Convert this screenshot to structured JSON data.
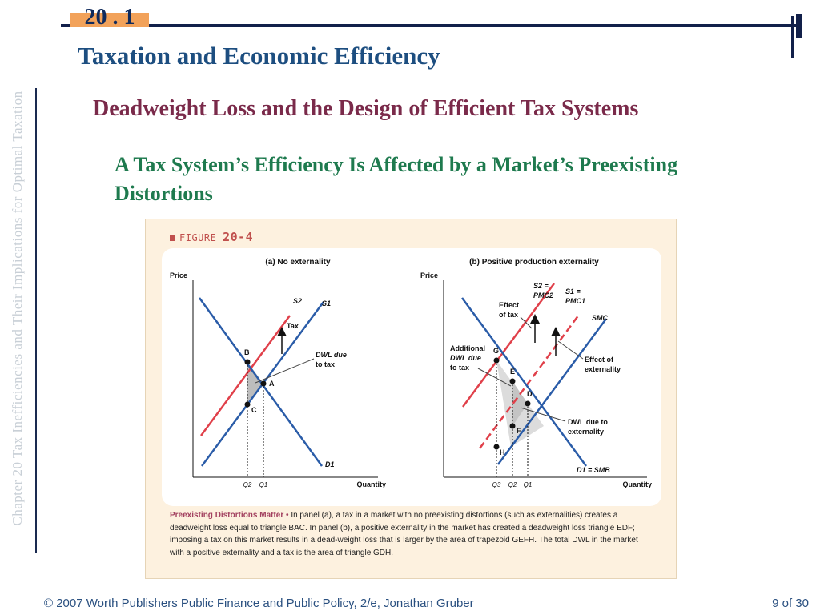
{
  "side_text": "Chapter 20  Tax Inefficiencies and Their Implications for Optimal Taxation",
  "section_number": "20 . 1",
  "title": "Taxation and Economic Efficiency",
  "subtitle": "Deadweight Loss and the Design of Efficient Tax Systems",
  "heading": "A Tax System’s Efficiency Is Affected by a Market’s Preexisting Distortions",
  "figure": {
    "label": "FIGURE",
    "number": "20-4",
    "panel_a": {
      "title": "(a) No externality",
      "ylabel": "Price",
      "xlabel": "Quantity",
      "s2": "S2",
      "s1": "S1",
      "d1": "D1",
      "tax": "Tax",
      "point_b": "B",
      "point_a": "A",
      "point_c": "C",
      "dwl_line1": "DWL due",
      "dwl_line2": "to tax",
      "q2": "Q2",
      "q1": "Q1"
    },
    "panel_b": {
      "title": "(b) Positive production externality",
      "ylabel": "Price",
      "xlabel": "Quantity",
      "s2_line1": "S2 =",
      "s2_line2": "PMC2",
      "s1_line1": "S1 =",
      "s1_line2": "PMC1",
      "smc": "SMC",
      "d1": "D1 = SMB",
      "effect_tax_1": "Effect",
      "effect_tax_2": "of tax",
      "additional_1": "Additional",
      "additional_2": "DWL due",
      "additional_3": "to tax",
      "effect_ext_1": "Effect of",
      "effect_ext_2": "externality",
      "dwl_ext_1": "DWL due to",
      "dwl_ext_2": "externality",
      "point_g": "G",
      "point_e": "E",
      "point_d": "D",
      "point_f": "F",
      "point_h": "H",
      "q3": "Q3",
      "q2": "Q2",
      "q1": "Q1"
    },
    "caption_lead": "Preexisting Distortions Matter •",
    "caption_text": "In panel (a), a tax in a market with no preexisting distortions (such as externalities) creates a deadweight loss equal to triangle BAC. In panel (b), a positive externality in the market has created a deadweight loss triangle EDF; imposing a tax on this market results in a dead-weight loss that is larger by the area of trapezoid GEFH. The total DWL in the market with a positive externality and a tax is the area of triangle GDH."
  },
  "footer": "© 2007 Worth Publishers   Public Finance and Public Policy, 2/e, Jonathan Gruber",
  "page": "9 of 30",
  "colors": {
    "title": "#1d4e80",
    "subtitle": "#7a2a4a",
    "heading": "#1e7a4e",
    "supply_red": "#e0404a",
    "curve_blue": "#2a5ca8",
    "accent_orange": "#f2a25a"
  }
}
